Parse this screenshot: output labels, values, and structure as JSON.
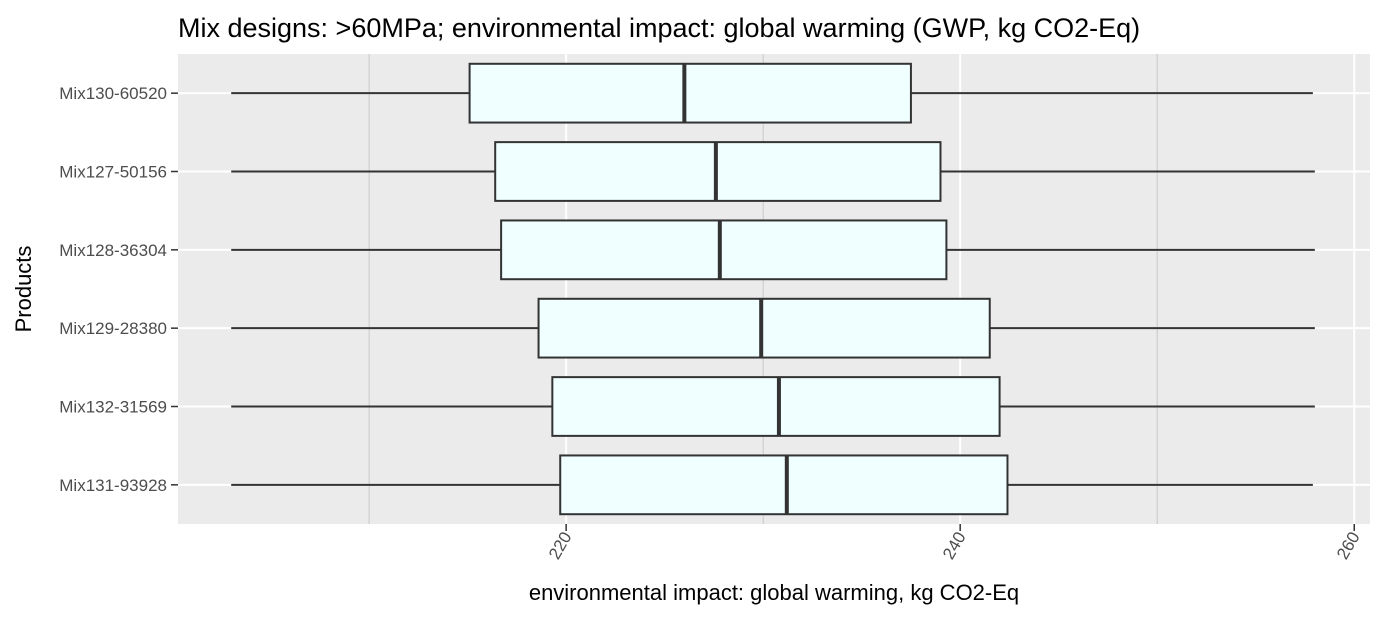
{
  "chart_data": {
    "type": "boxplot",
    "orientation": "horizontal",
    "title": "Mix designs: >60MPa; environmental impact: global warming (GWP, kg CO2-Eq)",
    "xlabel": "environmental impact: global warming, kg CO2-Eq",
    "ylabel": "Products",
    "xlim": [
      200.3,
      260.8
    ],
    "x_ticks": [
      220,
      240,
      260
    ],
    "x_minor_ticks": [
      210,
      230,
      250
    ],
    "tick_label_rotation": "angled",
    "grid": true,
    "legend": "none",
    "categories": [
      "Mix130-60520",
      "Mix127-50156",
      "Mix128-36304",
      "Mix129-28380",
      "Mix132-31569",
      "Mix131-93928"
    ],
    "boxes": [
      {
        "name": "Mix130-60520",
        "whisker_low": 203.0,
        "q1": 215.1,
        "median": 226.0,
        "q3": 237.5,
        "whisker_high": 257.9
      },
      {
        "name": "Mix127-50156",
        "whisker_low": 203.0,
        "q1": 216.4,
        "median": 227.6,
        "q3": 239.0,
        "whisker_high": 258.0
      },
      {
        "name": "Mix128-36304",
        "whisker_low": 203.0,
        "q1": 216.7,
        "median": 227.8,
        "q3": 239.3,
        "whisker_high": 258.0
      },
      {
        "name": "Mix129-28380",
        "whisker_low": 203.0,
        "q1": 218.6,
        "median": 229.9,
        "q3": 241.5,
        "whisker_high": 258.0
      },
      {
        "name": "Mix132-31569",
        "whisker_low": 203.0,
        "q1": 219.3,
        "median": 230.8,
        "q3": 242.0,
        "whisker_high": 258.0
      },
      {
        "name": "Mix131-93928",
        "whisker_low": 203.0,
        "q1": 219.7,
        "median": 231.2,
        "q3": 242.4,
        "whisker_high": 257.9
      }
    ],
    "colors": {
      "panel_background": "#ebebeb",
      "grid_major": "#ffffff",
      "grid_minor": "#c8c8c8",
      "box_fill": "#f0ffff",
      "box_stroke": "#333333"
    }
  }
}
